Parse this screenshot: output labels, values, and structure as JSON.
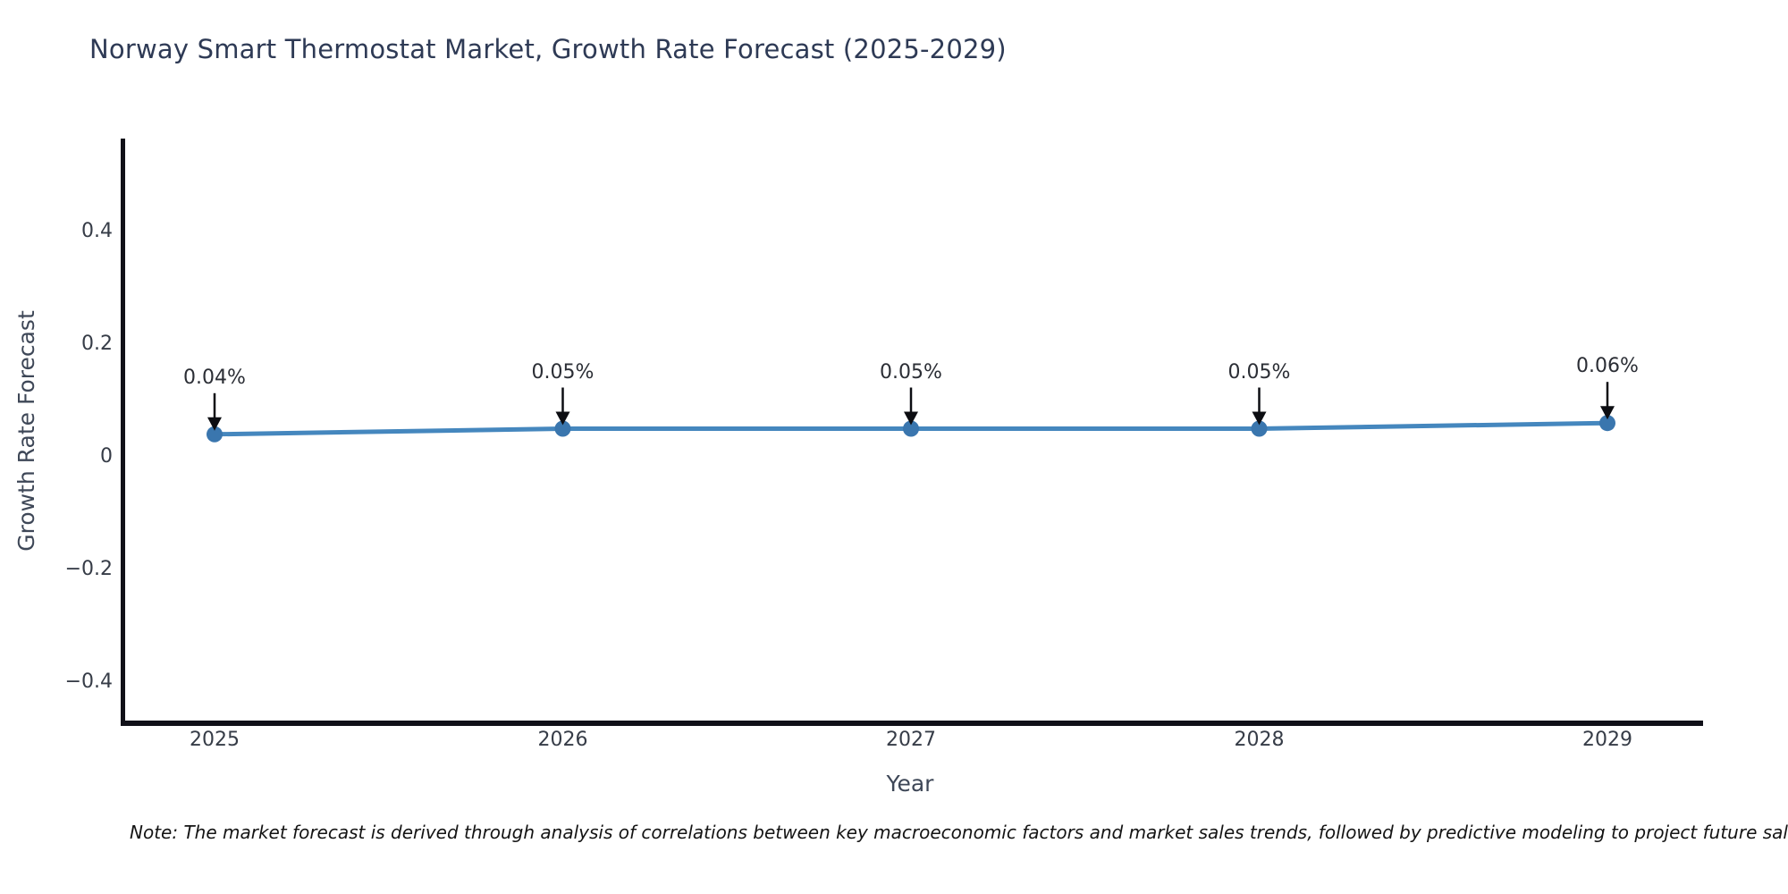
{
  "title": "Norway Smart Thermostat Market, Growth Rate Forecast (2025-2029)",
  "note": "Note: The market forecast is derived through analysis of correlations between key macroeconomic factors and market sales trends, followed by predictive modeling to project future sales",
  "colors": {
    "background": "#ffffff",
    "line": "#4587be",
    "marker": "#3a76ae",
    "spine": "#101018",
    "title_text": "#2e3a55",
    "tick_text": "#363c47",
    "axis_label_text": "#3e4757",
    "annotation_text": "#2b2e35",
    "arrow": "#0c0d12",
    "note_text": "#141414"
  },
  "chart_data": {
    "type": "line",
    "title": "Norway Smart Thermostat Market, Growth Rate Forecast (2025-2029)",
    "x": [
      2025,
      2026,
      2027,
      2028,
      2029
    ],
    "values": [
      0.04,
      0.05,
      0.05,
      0.05,
      0.06
    ],
    "point_labels": [
      "0.04%",
      "0.05%",
      "0.05%",
      "0.05%",
      "0.06%"
    ],
    "xlabel": "Year",
    "ylabel": "Growth Rate Forecast",
    "x_tick_labels": [
      "2025",
      "2026",
      "2027",
      "2028",
      "2029"
    ],
    "y_ticks": {
      "values": [
        0.4,
        0.2,
        0,
        -0.2,
        -0.4
      ],
      "labels": [
        "0.4",
        "0.2",
        "0",
        "−0.2",
        "−0.4"
      ]
    },
    "ylim": [
      -0.47,
      0.56
    ],
    "grid": false,
    "legend": "none",
    "marker_style": "circle",
    "annotation_arrows": "down"
  }
}
